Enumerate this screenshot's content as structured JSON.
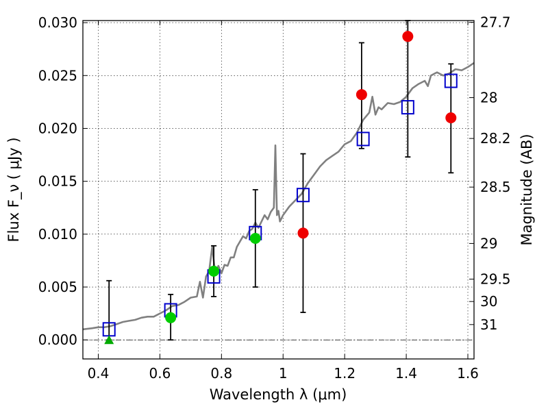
{
  "chart_data": {
    "type": "scatter",
    "title": "",
    "xlabel": "Wavelength  λ (μm)",
    "ylabel": "Flux  F_ν  ( μJy )",
    "ylabel_right": "Magnitude (AB)",
    "xlim": [
      0.35,
      1.62
    ],
    "ylim": [
      -0.0018,
      0.0302
    ],
    "grid": true,
    "x_ticks": [
      0.4,
      0.6,
      0.8,
      1.0,
      1.2,
      1.4,
      1.6
    ],
    "x_tick_labels": [
      "0.4",
      "0.6",
      "0.8",
      "1",
      "1.2",
      "1.4",
      "1.6"
    ],
    "y_ticks": [
      0.0,
      0.005,
      0.01,
      0.015,
      0.02,
      0.025,
      0.03
    ],
    "y_tick_labels": [
      "0.000",
      "0.005",
      "0.010",
      "0.015",
      "0.020",
      "0.025",
      "0.030"
    ],
    "right_ticks": [
      {
        "mag": "27.7",
        "flux": 0.03004
      },
      {
        "mag": "28",
        "flux": 0.02291
      },
      {
        "mag": "28.2",
        "flux": 0.01905
      },
      {
        "mag": "28.5",
        "flux": 0.01445
      },
      {
        "mag": "29",
        "flux": 0.00912
      },
      {
        "mag": "29.5",
        "flux": 0.00575
      },
      {
        "mag": "30",
        "flux": 0.00363
      },
      {
        "mag": "31",
        "flux": 0.00145
      }
    ],
    "model_spectrum": {
      "color": "#808080",
      "x": [
        0.35,
        0.38,
        0.4,
        0.42,
        0.44,
        0.46,
        0.48,
        0.5,
        0.52,
        0.54,
        0.56,
        0.58,
        0.6,
        0.62,
        0.64,
        0.66,
        0.68,
        0.7,
        0.72,
        0.73,
        0.74,
        0.75,
        0.76,
        0.77,
        0.78,
        0.79,
        0.8,
        0.81,
        0.82,
        0.83,
        0.84,
        0.85,
        0.86,
        0.87,
        0.88,
        0.89,
        0.9,
        0.91,
        0.92,
        0.93,
        0.94,
        0.95,
        0.96,
        0.97,
        0.975,
        0.98,
        0.985,
        0.99,
        1.0,
        1.02,
        1.04,
        1.06,
        1.08,
        1.1,
        1.12,
        1.14,
        1.16,
        1.18,
        1.2,
        1.22,
        1.24,
        1.26,
        1.28,
        1.29,
        1.3,
        1.31,
        1.32,
        1.34,
        1.36,
        1.38,
        1.4,
        1.42,
        1.44,
        1.46,
        1.47,
        1.48,
        1.5,
        1.52,
        1.54,
        1.56,
        1.58,
        1.6,
        1.62
      ],
      "y": [
        0.001,
        0.0011,
        0.0012,
        0.0012,
        0.0013,
        0.0015,
        0.0017,
        0.0018,
        0.0019,
        0.0021,
        0.0022,
        0.0022,
        0.0025,
        0.0028,
        0.0032,
        0.0033,
        0.0036,
        0.004,
        0.0041,
        0.0055,
        0.004,
        0.006,
        0.0065,
        0.0088,
        0.0062,
        0.007,
        0.0063,
        0.0071,
        0.007,
        0.0078,
        0.0078,
        0.0088,
        0.0093,
        0.0098,
        0.0096,
        0.0103,
        0.0105,
        0.0111,
        0.0106,
        0.0112,
        0.0118,
        0.0114,
        0.0121,
        0.0125,
        0.0184,
        0.0118,
        0.0122,
        0.0112,
        0.0118,
        0.0126,
        0.0132,
        0.0138,
        0.0148,
        0.0156,
        0.0164,
        0.017,
        0.0174,
        0.0178,
        0.0185,
        0.0188,
        0.0196,
        0.0208,
        0.0215,
        0.023,
        0.0213,
        0.022,
        0.0218,
        0.0224,
        0.0223,
        0.0225,
        0.023,
        0.0238,
        0.0242,
        0.0245,
        0.024,
        0.025,
        0.0253,
        0.025,
        0.0252,
        0.0256,
        0.0255,
        0.0258,
        0.0262
      ]
    },
    "series": [
      {
        "marker": "open-square",
        "color": "#0000cc",
        "x": [
          0.435,
          0.635,
          0.775,
          0.91,
          1.065,
          1.26,
          1.405,
          1.545
        ],
        "y": [
          0.001,
          0.0028,
          0.006,
          0.0101,
          0.0137,
          0.019,
          0.022,
          0.0245
        ]
      },
      {
        "marker": "circle",
        "color": "#00cc00",
        "x": [
          0.635,
          0.775,
          0.91
        ],
        "y": [
          0.0021,
          0.0065,
          0.0096
        ]
      },
      {
        "marker": "triangle",
        "color": "#00aa00",
        "x": [
          0.435
        ],
        "y": [
          0.0
        ]
      },
      {
        "marker": "circle",
        "color": "#ee0000",
        "x": [
          1.065,
          1.255,
          1.405,
          1.545
        ],
        "y": [
          0.0101,
          0.0232,
          0.0287,
          0.021
        ]
      }
    ],
    "error_bars": [
      {
        "x": 0.435,
        "low": 0.0,
        "high": 0.0056
      },
      {
        "x": 0.635,
        "low": 0.0,
        "high": 0.0043
      },
      {
        "x": 0.775,
        "low": 0.0041,
        "high": 0.0089
      },
      {
        "x": 0.91,
        "low": 0.005,
        "high": 0.0142
      },
      {
        "x": 1.065,
        "low": 0.0026,
        "high": 0.0176
      },
      {
        "x": 1.255,
        "low": 0.0181,
        "high": 0.0281
      },
      {
        "x": 1.405,
        "low": 0.0173,
        "high": 0.0302
      },
      {
        "x": 1.545,
        "low": 0.0158,
        "high": 0.0261
      }
    ],
    "hline": {
      "y": 0.0,
      "style": "dash-dot",
      "color": "#000000"
    }
  }
}
